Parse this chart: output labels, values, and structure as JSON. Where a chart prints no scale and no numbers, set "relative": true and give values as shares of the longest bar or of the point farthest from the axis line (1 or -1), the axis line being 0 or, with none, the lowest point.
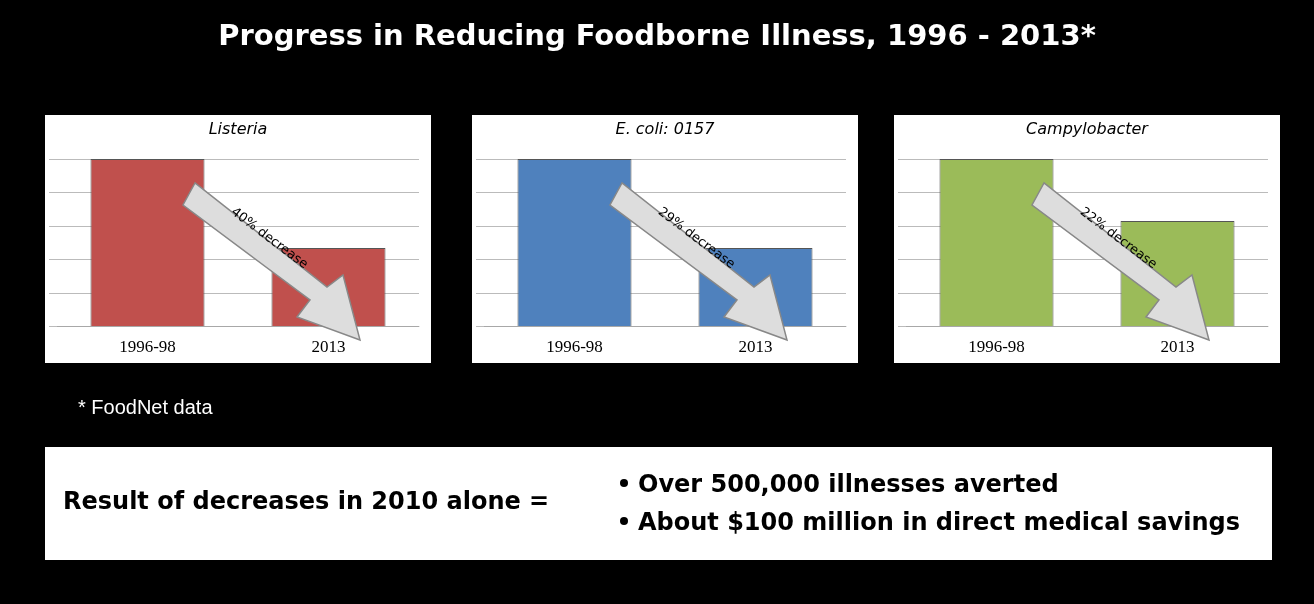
{
  "chart_data": [
    {
      "type": "other",
      "title": "Progress in Reducing Foodborne Illness, 1996 - 2013*"
    },
    {
      "type": "bar",
      "title": "Listeria",
      "categories": [
        "1996-98",
        "2013"
      ],
      "values": [
        1,
        0.47
      ],
      "color": "#c0504d",
      "relative": true,
      "grid": "y",
      "annotations": [
        "40% decrease"
      ]
    },
    {
      "type": "bar",
      "title": "E. coli: 0157",
      "categories": [
        "1996-98",
        "2013"
      ],
      "values": [
        1,
        0.47
      ],
      "color": "#4f81bd",
      "relative": true,
      "grid": "y",
      "annotations": [
        "29% decrease"
      ]
    },
    {
      "type": "bar",
      "title": "Campylobacter",
      "categories": [
        "1996-98",
        "2013"
      ],
      "values": [
        1,
        0.63
      ],
      "color": "#9bbb59",
      "relative": true,
      "grid": "y",
      "annotations": [
        "22% decrease"
      ]
    },
    {
      "type": "other",
      "annotations": [
        "* FoodNet data",
        "Result of decreases in 2010 alone =",
        "Over 500,000 illnesses averted",
        "About $100 million in direct medical savings"
      ]
    }
  ]
}
